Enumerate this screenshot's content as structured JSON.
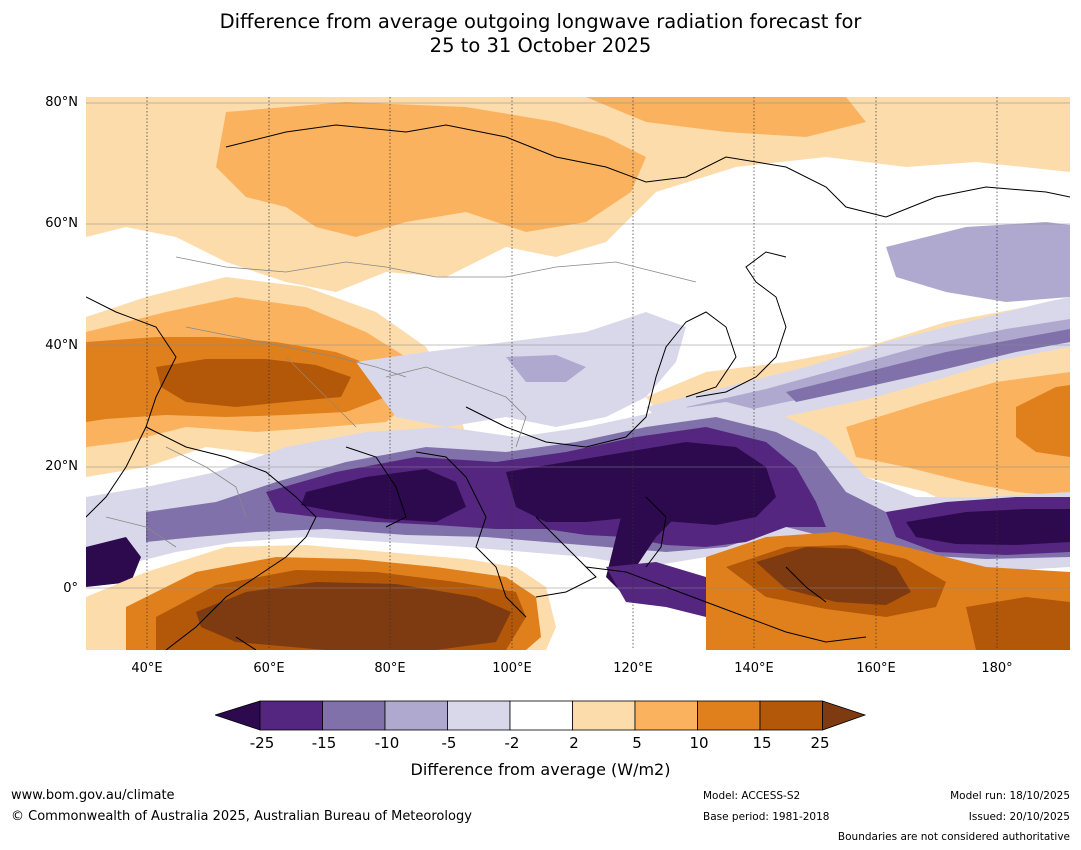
{
  "title": {
    "line1": "Difference from average outgoing longwave radiation forecast for",
    "line2": "25 to 31 October 2025"
  },
  "map": {
    "lat_labels": [
      "80°N",
      "60°N",
      "40°N",
      "20°N",
      "0°"
    ],
    "lon_labels": [
      "40°E",
      "60°E",
      "80°E",
      "100°E",
      "120°E",
      "140°E",
      "160°E",
      "180°"
    ],
    "extent": {
      "lon_min": 30,
      "lon_max": 192,
      "lat_min": -10,
      "lat_max": 81
    }
  },
  "colorbar": {
    "ticks": [
      "-25",
      "-15",
      "-10",
      "-5",
      "-2",
      "2",
      "5",
      "10",
      "15",
      "25"
    ],
    "colors": [
      "#2d0a4e",
      "#54267f",
      "#8071aa",
      "#b0a9cf",
      "#d9d8ea",
      "#ffffff",
      "#fddcac",
      "#fbb25f",
      "#e0801d",
      "#b35709",
      "#7e3a10"
    ],
    "label": "Difference from average (W/m2)"
  },
  "footer": {
    "url": "www.bom.gov.au/climate",
    "copyright": "© Commonwealth of Australia 2025, Australian Bureau of Meteorology",
    "model": "Model: ACCESS-S2",
    "base_period": "Base period: 1981-2018",
    "model_run": "Model run: 18/10/2025",
    "issued": "Issued: 20/10/2025",
    "disclaimer": "Boundaries are not considered authoritative"
  }
}
